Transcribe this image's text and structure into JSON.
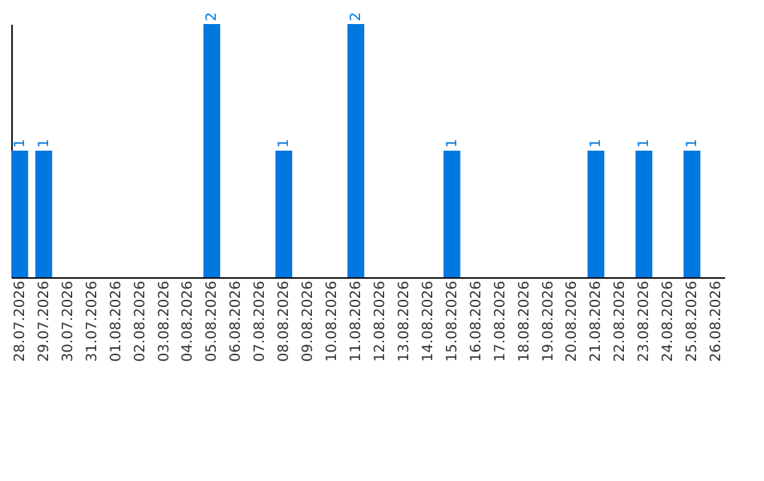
{
  "chart_data": {
    "type": "bar",
    "categories": [
      "28.07.2026",
      "29.07.2026",
      "30.07.2026",
      "31.07.2026",
      "01.08.2026",
      "02.08.2026",
      "03.08.2026",
      "04.08.2026",
      "05.08.2026",
      "06.08.2026",
      "07.08.2026",
      "08.08.2026",
      "09.08.2026",
      "10.08.2026",
      "11.08.2026",
      "12.08.2026",
      "13.08.2026",
      "14.08.2026",
      "15.08.2026",
      "16.08.2026",
      "17.08.2026",
      "18.08.2026",
      "19.08.2026",
      "20.08.2026",
      "21.08.2026",
      "22.08.2026",
      "23.08.2026",
      "24.08.2026",
      "25.08.2026",
      "26.08.2026"
    ],
    "values": [
      1,
      1,
      0,
      0,
      0,
      0,
      0,
      0,
      2,
      0,
      0,
      1,
      0,
      0,
      2,
      0,
      0,
      0,
      1,
      0,
      0,
      0,
      0,
      0,
      1,
      0,
      1,
      0,
      1,
      0
    ],
    "value_labels": [
      "1",
      "1",
      null,
      null,
      null,
      null,
      null,
      null,
      "2",
      null,
      null,
      "1",
      null,
      null,
      "2",
      null,
      null,
      null,
      "1",
      null,
      null,
      null,
      null,
      null,
      "1",
      null,
      "1",
      null,
      "1",
      null
    ],
    "color": "#0078e0",
    "ylim": [
      0,
      2
    ],
    "tick_labels": "x",
    "grid": false
  }
}
